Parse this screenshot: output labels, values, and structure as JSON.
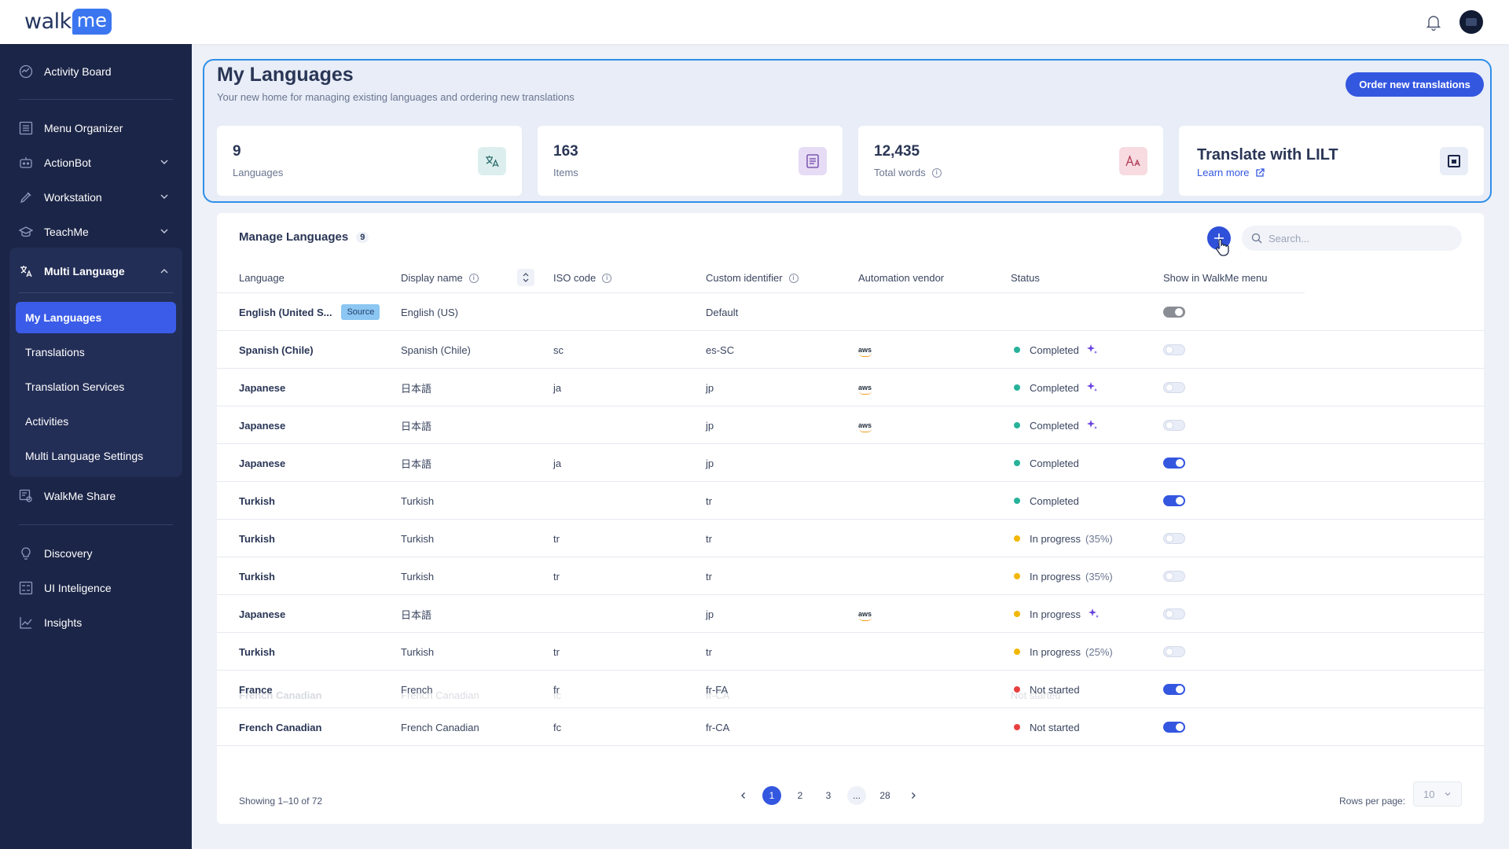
{
  "app": {
    "logo_walk": "walk",
    "logo_me": "me"
  },
  "sidebar": {
    "items": [
      {
        "label": "Activity Board",
        "icon": "activity-icon"
      },
      {
        "label": "Menu Organizer",
        "icon": "menu-organizer-icon"
      },
      {
        "label": "ActionBot",
        "icon": "bot-icon"
      },
      {
        "label": "Workstation",
        "icon": "rocket-icon"
      },
      {
        "label": "TeachMe",
        "icon": "graduation-cap-icon"
      },
      {
        "label": "WalkMe Share",
        "icon": "share-icon"
      },
      {
        "label": "Discovery",
        "icon": "lightbulb-icon"
      },
      {
        "label": "UI Inteligence",
        "icon": "ui-intelligence-icon"
      },
      {
        "label": "Insights",
        "icon": "chart-line-icon"
      }
    ],
    "multi_language": {
      "label": "Multi Language",
      "sub_items": [
        "My Languages",
        "Translations",
        "Translation Services",
        "Activities",
        "Multi Language Settings"
      ]
    }
  },
  "header": {
    "title": "My Languages",
    "subtitle": "Your new home for managing existing languages and ordering new translations",
    "order_button": "Order new translations"
  },
  "stats": [
    {
      "value": "9",
      "label": "Languages",
      "icon": "translate-icon",
      "color": "#dcefee"
    },
    {
      "value": "163",
      "label": "Items",
      "icon": "document-icon",
      "color": "#e6dcf5"
    },
    {
      "value": "12,435",
      "label": "Total words",
      "icon": "font-size-icon",
      "color": "#f7dbe1"
    }
  ],
  "lilt": {
    "title": "Translate with LILT",
    "link": "Learn more"
  },
  "manage": {
    "title": "Manage Languages",
    "count": "9",
    "search_placeholder": "Search...",
    "columns": [
      "Language",
      "Display name",
      "ISO code",
      "Custom identifier",
      "Automation vendor",
      "Status",
      "Show in WalkMe menu"
    ],
    "rows": [
      {
        "language": "English (United S...",
        "source": "Source",
        "display": "English (US)",
        "iso": "",
        "custom": "Default",
        "vendor": "",
        "status": "",
        "pct": "",
        "sparkle": false,
        "toggle": "disabled"
      },
      {
        "language": "Spanish (Chile)",
        "display": "Spanish (Chile)",
        "iso": "sc",
        "custom": "es-SC",
        "vendor": "aws",
        "status": "Completed",
        "pct": "",
        "sparkle": true,
        "toggle": "off"
      },
      {
        "language": "Japanese",
        "display": "日本語",
        "iso": "ja",
        "custom": "jp",
        "vendor": "aws",
        "status": "Completed",
        "pct": "",
        "sparkle": true,
        "toggle": "off"
      },
      {
        "language": "Japanese",
        "display": "日本語",
        "iso": "",
        "custom": "jp",
        "vendor": "aws",
        "status": "Completed",
        "pct": "",
        "sparkle": true,
        "toggle": "off"
      },
      {
        "language": "Japanese",
        "display": "日本語",
        "iso": "ja",
        "custom": "jp",
        "vendor": "",
        "status": "Completed",
        "pct": "",
        "sparkle": false,
        "toggle": "on"
      },
      {
        "language": "Turkish",
        "display": "Turkish",
        "iso": "",
        "custom": "tr",
        "vendor": "",
        "status": "Completed",
        "pct": "",
        "sparkle": false,
        "toggle": "on"
      },
      {
        "language": "Turkish",
        "display": "Turkish",
        "iso": "tr",
        "custom": "tr",
        "vendor": "",
        "status": "In progress",
        "pct": "(35%)",
        "sparkle": false,
        "toggle": "off"
      },
      {
        "language": "Turkish",
        "display": "Turkish",
        "iso": "tr",
        "custom": "tr",
        "vendor": "",
        "status": "In progress",
        "pct": "(35%)",
        "sparkle": false,
        "toggle": "off"
      },
      {
        "language": "Japanese",
        "display": "日本語",
        "iso": "",
        "custom": "jp",
        "vendor": "aws",
        "status": "In progress",
        "pct": "",
        "sparkle": true,
        "toggle": "off"
      },
      {
        "language": "Turkish",
        "display": "Turkish",
        "iso": "tr",
        "custom": "tr",
        "vendor": "",
        "status": "In progress",
        "pct": "(25%)",
        "sparkle": false,
        "toggle": "off"
      },
      {
        "language": "France",
        "display": "French",
        "iso": "fr",
        "custom": "fr-FA",
        "vendor": "",
        "status": "Not started",
        "pct": "",
        "sparkle": false,
        "toggle": "on"
      },
      {
        "language": "French Canadian",
        "display": "French Canadian",
        "iso": "fc",
        "custom": "fr-CA",
        "vendor": "",
        "status": "Not started",
        "pct": "",
        "sparkle": false,
        "toggle": "on"
      }
    ],
    "faded_row": {
      "language": "French Canadian",
      "display": "French Canadian",
      "iso": "fc",
      "custom": "fr-CA",
      "status": "Not started"
    },
    "status_colors": {
      "Completed": "#27b29a",
      "In progress": "#f2b705",
      "Not started": "#e8403f"
    }
  },
  "pagination": {
    "showing": "Showing 1–10 of 72",
    "pages": [
      "1",
      "2",
      "3",
      "...",
      "28"
    ],
    "rows_per_page_label": "Rows per page:",
    "rows_per_page_value": "10"
  }
}
